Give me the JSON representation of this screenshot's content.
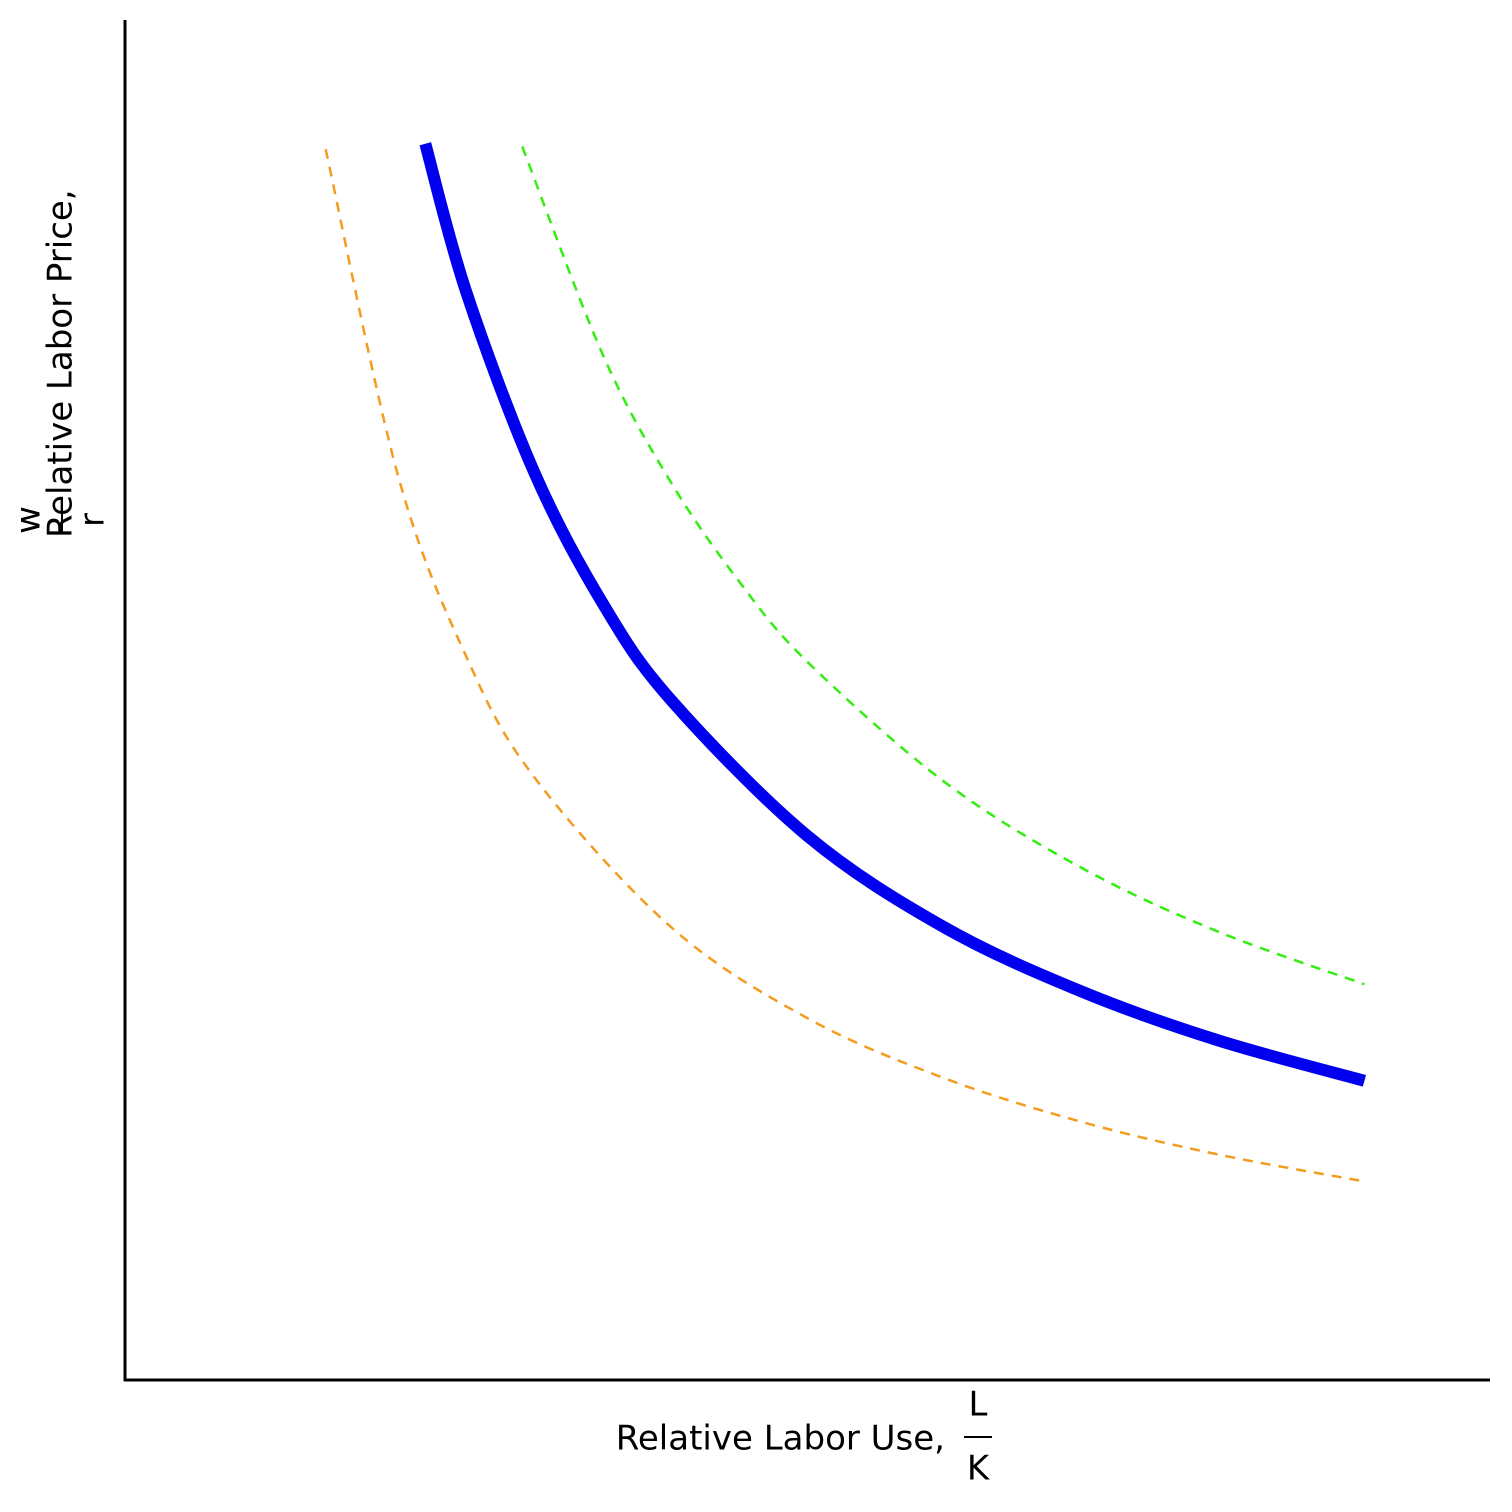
{
  "chart_data": {
    "type": "line",
    "x_label": "Relative Labor Use,",
    "x_label_num": "L",
    "x_label_den": "K",
    "y_label": "Relative Labor Price,",
    "y_label_num": "w",
    "y_label_den": "r",
    "xlim": [
      0,
      10
    ],
    "ylim": [
      0,
      10
    ],
    "series": [
      {
        "color": "#f39c1f",
        "linestyle": "dashed",
        "x": [
          1.47,
          2,
          2.5,
          3,
          4,
          5,
          6,
          7,
          8,
          9.08
        ],
        "values": [
          9.05,
          6.65,
          5.32,
          4.43,
          3.33,
          2.66,
          2.22,
          1.9,
          1.66,
          1.46
        ]
      },
      {
        "color": "#0000ee",
        "linestyle": "solid",
        "x": [
          2.2,
          2.5,
          3,
          3.5,
          4,
          5,
          6,
          7,
          8,
          9.08
        ],
        "values": [
          9.09,
          8,
          6.67,
          5.71,
          5,
          4,
          3.33,
          2.86,
          2.5,
          2.2
        ]
      },
      {
        "color": "#33ee11",
        "linestyle": "dashed",
        "x": [
          2.91,
          3.5,
          4,
          4.5,
          5,
          6,
          7,
          8,
          9.08
        ],
        "values": [
          9.07,
          7.54,
          6.6,
          5.87,
          5.28,
          4.4,
          3.77,
          3.3,
          2.91
        ]
      }
    ]
  }
}
